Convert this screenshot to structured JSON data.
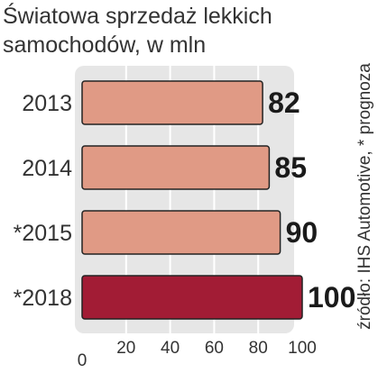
{
  "title": "Światowa sprzedaż lekkich samochodów, w mln",
  "source_note": "źródło: IHS Automotive, * prognoza",
  "chart_data": {
    "type": "bar",
    "orientation": "horizontal",
    "categories": [
      "2013",
      "2014",
      "*2015",
      "*2018"
    ],
    "values": [
      82,
      85,
      90,
      100
    ],
    "value_labels": [
      "82",
      "85",
      "90",
      "100"
    ],
    "xlim": [
      0,
      100
    ],
    "xticks": [
      0,
      20,
      40,
      60,
      80,
      100
    ],
    "xtick_labels": [
      "0",
      "20",
      "40",
      "60",
      "80",
      "100"
    ],
    "grid": true,
    "colors": {
      "bar": "#e09a85",
      "highlight_bar": "#a21c35",
      "bar_outline": "#222222",
      "plot_background": "#e6e6e6",
      "gridline": "#ffffff",
      "text": "#333333",
      "value_text": "#1a1a1a"
    },
    "highlight_index": 3
  }
}
